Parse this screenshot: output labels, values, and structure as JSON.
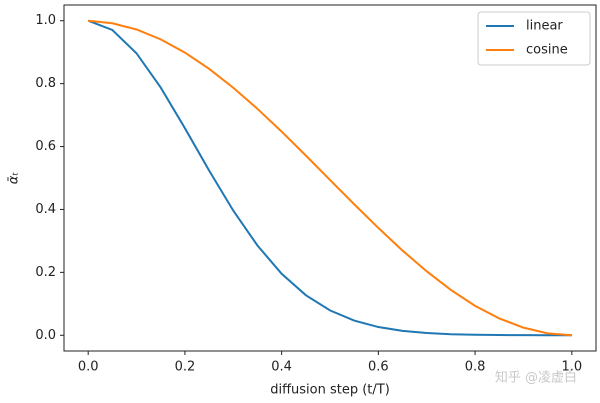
{
  "chart_data": {
    "type": "line",
    "x_label": "diffusion step (t/T)",
    "y_label": "ᾱₜ",
    "x": [
      0,
      0.05,
      0.1,
      0.15,
      0.2,
      0.25,
      0.3,
      0.35,
      0.4,
      0.45,
      0.5,
      0.55,
      0.6,
      0.65,
      0.7,
      0.75,
      0.8,
      0.85,
      0.9,
      0.95,
      1
    ],
    "series": [
      {
        "name": "linear",
        "color": "#1f77b4",
        "values": [
          1,
          0.9706,
          0.8963,
          0.7875,
          0.6584,
          0.5237,
          0.3963,
          0.2854,
          0.1955,
          0.1275,
          0.0791,
          0.0467,
          0.0262,
          0.014,
          0.0071,
          0.0034,
          0.0016,
          0.0007,
          0.0003,
          0.0001,
          0
        ]
      },
      {
        "name": "cosine",
        "color": "#ff7f0e",
        "values": [
          1,
          0.992,
          0.9721,
          0.9407,
          0.8987,
          0.847,
          0.7869,
          0.7199,
          0.6475,
          0.5716,
          0.4939,
          0.4165,
          0.3413,
          0.2693,
          0.2033,
          0.1441,
          0.0935,
          0.0536,
          0.0242,
          0.0061,
          0
        ]
      }
    ],
    "xlim": [
      -0.05,
      1.05
    ],
    "ylim": [
      -0.05,
      1.05
    ],
    "xticks": [
      {
        "value": 0,
        "label": "0.0"
      },
      0.2,
      0.4,
      0.6,
      0.8,
      {
        "value": 1,
        "label": "1.0"
      }
    ],
    "yticks": [
      {
        "value": 0,
        "label": "0.0"
      },
      0.2,
      0.4,
      0.6,
      0.8,
      {
        "value": 1,
        "label": "1.0"
      }
    ],
    "legend": "upper right",
    "watermark": "知乎 @凌虚白"
  }
}
